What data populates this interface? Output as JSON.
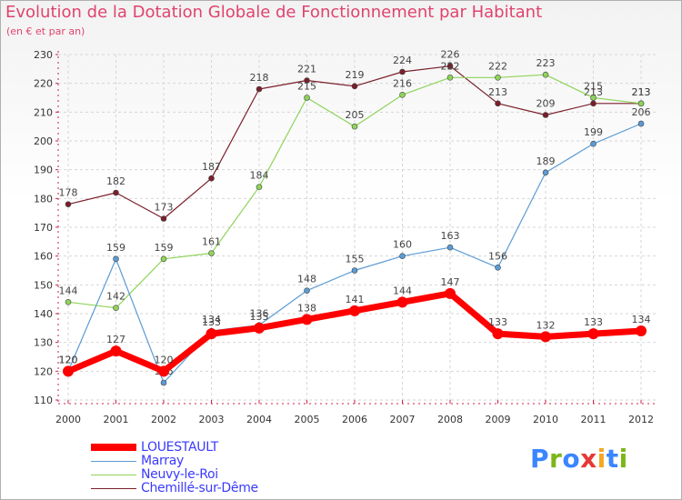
{
  "header": {
    "title": "Evolution de la Dotation Globale de Fonctionnement par Habitant",
    "subtitle": "(en € et par an)"
  },
  "brand": {
    "letters": [
      "P",
      "r",
      "o",
      "x",
      "i",
      "t",
      "i"
    ],
    "colors": [
      "#3a86ff",
      "#7cb518",
      "#3a86ff",
      "#e53935",
      "#f5a623",
      "#3a86ff",
      "#7cb518"
    ]
  },
  "chart_data": {
    "type": "line",
    "x": [
      "2000",
      "2001",
      "2002",
      "2003",
      "2004",
      "2005",
      "2006",
      "2007",
      "2008",
      "2009",
      "2010",
      "2011",
      "2012"
    ],
    "ylim": [
      110,
      230
    ],
    "yticks": [
      110,
      120,
      130,
      140,
      150,
      160,
      170,
      180,
      190,
      200,
      210,
      220,
      230
    ],
    "grid": true,
    "legend_position": "bottom-left",
    "series": [
      {
        "name": "Chemillé-sur-Dême",
        "color": "#7a1f2b",
        "values": [
          178,
          182,
          173,
          187,
          218,
          221,
          219,
          224,
          226,
          213,
          209,
          213,
          213
        ],
        "labels": [
          "178",
          "182",
          "173",
          "187",
          "218",
          "221",
          "219",
          "224",
          "226",
          "213",
          "209",
          "213",
          "213"
        ]
      },
      {
        "name": "Neuvy-le-Roi",
        "color": "#8fd45a",
        "values": [
          144,
          142,
          159,
          161,
          184,
          215,
          205,
          216,
          222,
          222,
          223,
          215,
          213
        ],
        "labels": [
          "144",
          "142",
          "159",
          "161",
          "184",
          "215",
          "205",
          "216",
          "222",
          "222",
          "223",
          "215",
          "213"
        ]
      },
      {
        "name": "Marray",
        "color": "#5b9bd5",
        "values": [
          120,
          159,
          116,
          134,
          136,
          148,
          155,
          160,
          163,
          156,
          189,
          199,
          206
        ],
        "labels": [
          "120",
          "159",
          "116",
          "134",
          "136",
          "148",
          "155",
          "160",
          "163",
          "156",
          "189",
          "199",
          "206"
        ]
      },
      {
        "name": "LOUESTAULT",
        "color": "#ff0000",
        "values": [
          120,
          127,
          120,
          133,
          135,
          138,
          141,
          144,
          147,
          133,
          132,
          133,
          134
        ],
        "labels": [
          "120",
          "127",
          "120",
          "133",
          "135",
          "138",
          "141",
          "144",
          "147",
          "133",
          "132",
          "133",
          "134"
        ]
      }
    ]
  },
  "legend": {
    "items": [
      {
        "name": "LOUESTAULT",
        "color": "#ff0000",
        "weight": "thick"
      },
      {
        "name": "Marray",
        "color": "#5b9bd5",
        "weight": "thin"
      },
      {
        "name": "Neuvy-le-Roi",
        "color": "#8fd45a",
        "weight": "thin"
      },
      {
        "name": "Chemillé-sur-Dême",
        "color": "#7a1f2b",
        "weight": "thin"
      }
    ]
  }
}
